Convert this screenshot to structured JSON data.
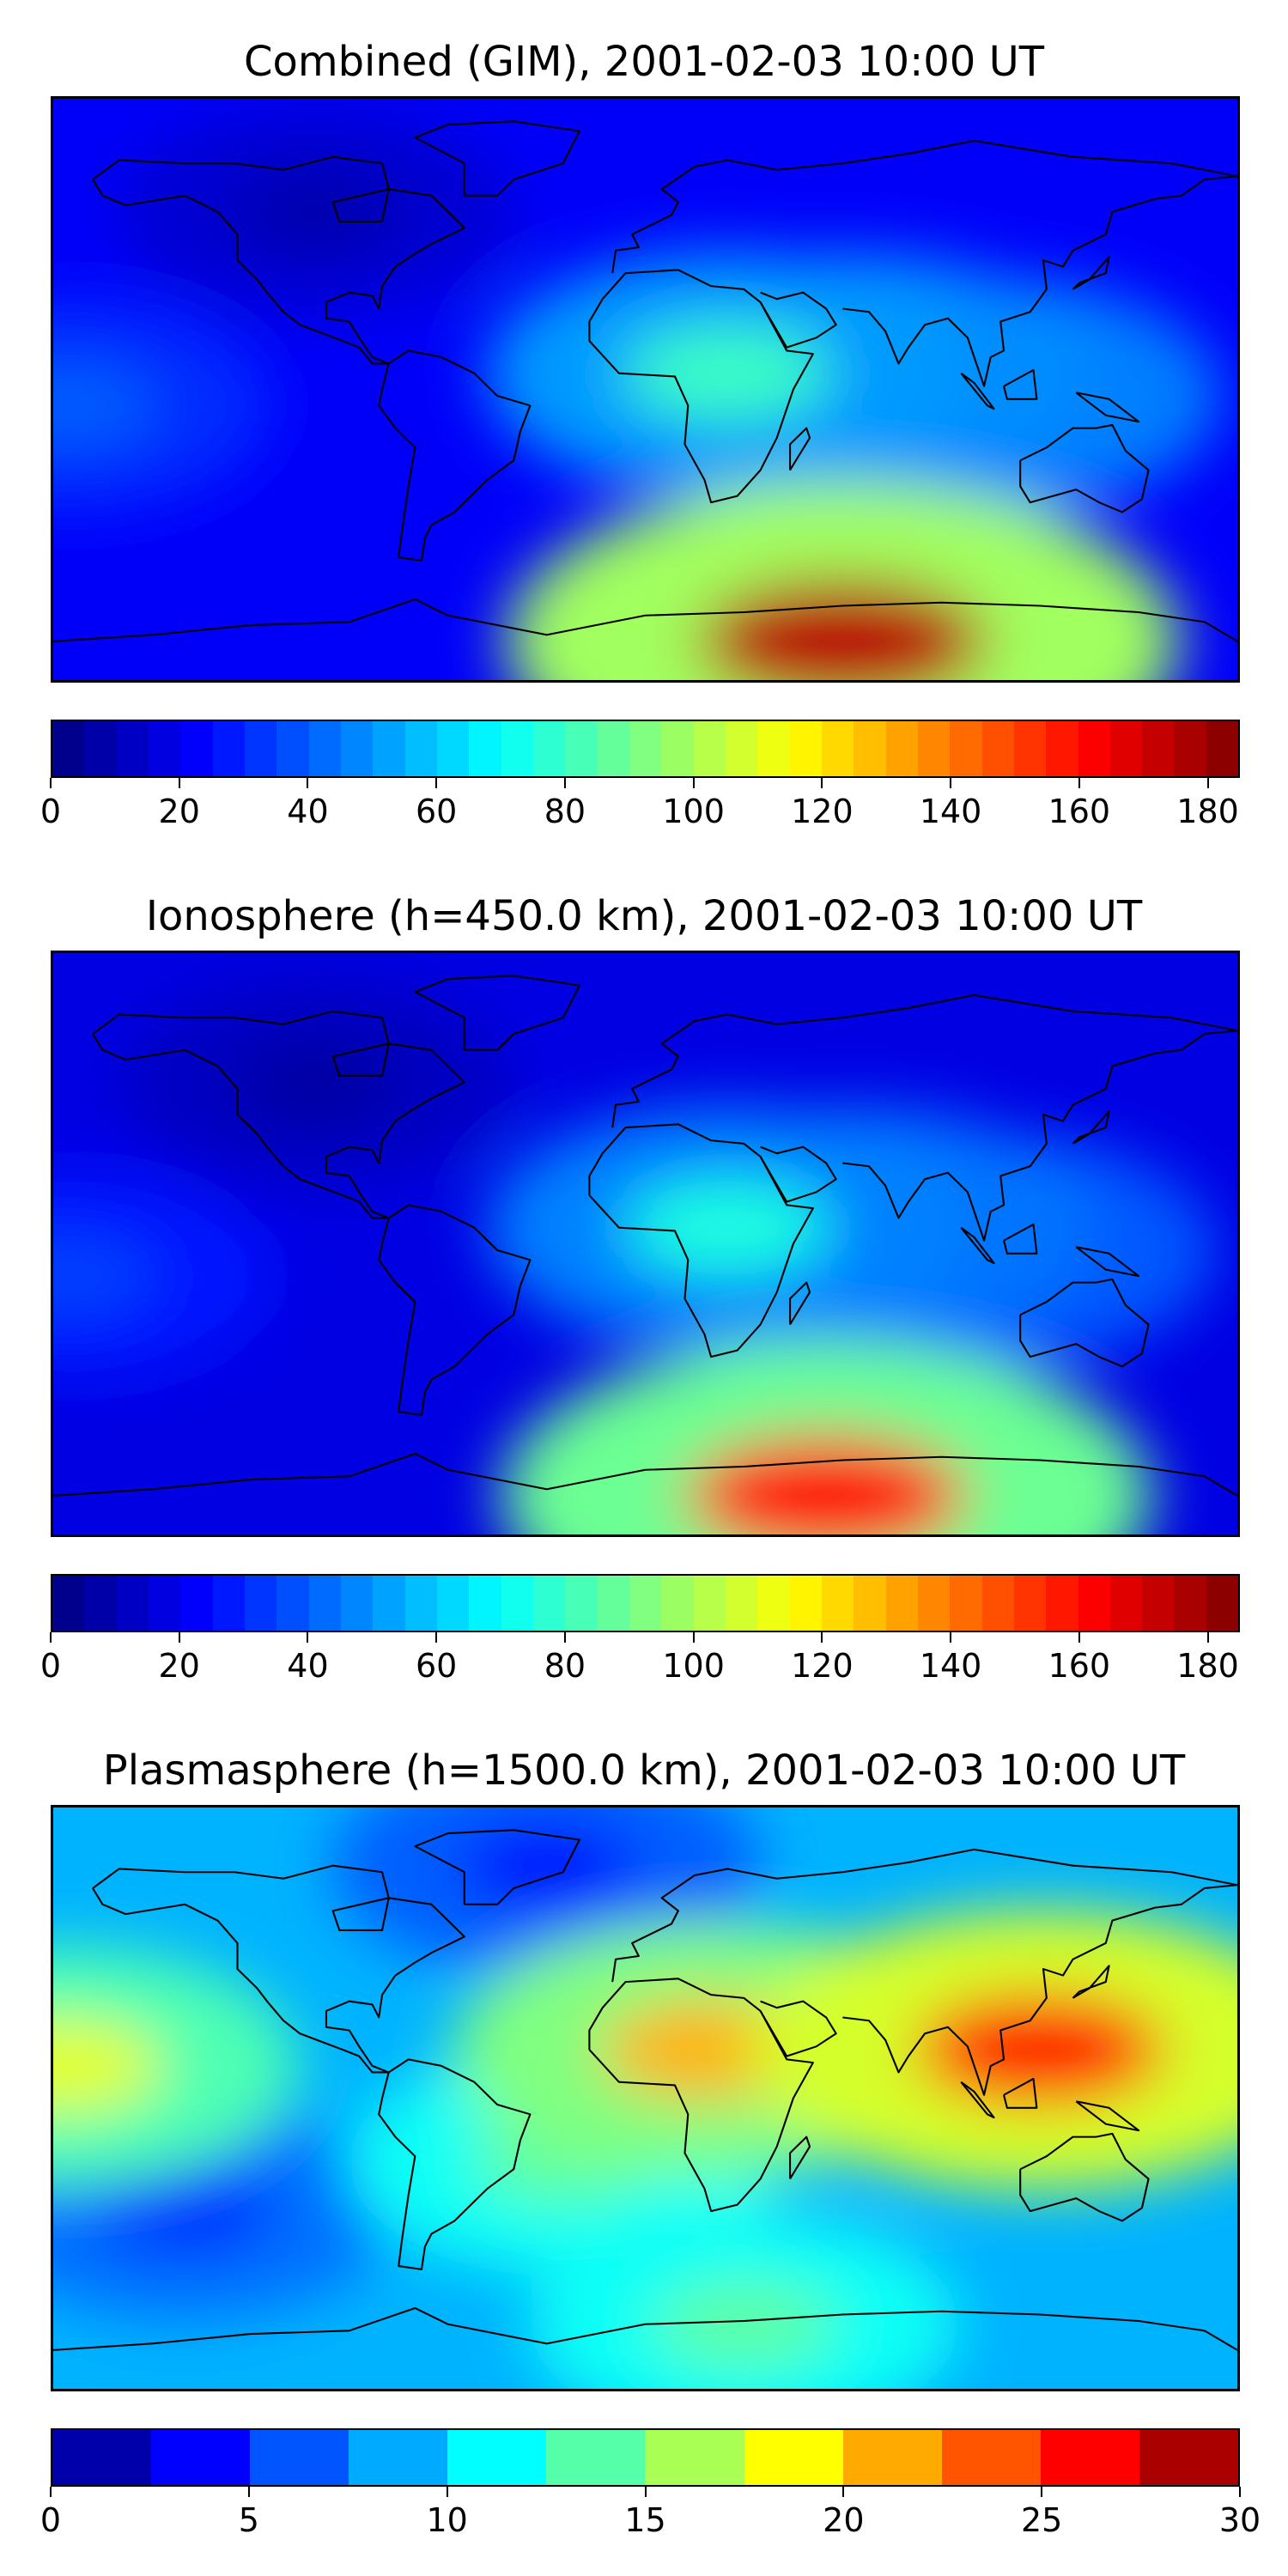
{
  "panels": [
    {
      "title": "Combined (GIM), 2001-02-03 10:00 UT",
      "colorbar": {
        "min": 0,
        "max": 185,
        "levels": 37,
        "ticks": [
          0,
          20,
          40,
          60,
          80,
          100,
          120,
          140,
          160,
          180
        ]
      }
    },
    {
      "title": "Ionosphere  (h=450.0 km), 2001-02-03 10:00 UT",
      "colorbar": {
        "min": 0,
        "max": 185,
        "levels": 37,
        "ticks": [
          0,
          20,
          40,
          60,
          80,
          100,
          120,
          140,
          160,
          180
        ]
      }
    },
    {
      "title": "Plasmasphere (h=1500.0 km), 2001-02-03 10:00 UT",
      "colorbar": {
        "min": 0,
        "max": 30,
        "levels": 12,
        "ticks": [
          0,
          5,
          10,
          15,
          20,
          25,
          30
        ]
      }
    }
  ],
  "chart_data": [
    {
      "type": "heatmap",
      "title": "Combined (GIM), 2001-02-03 10:00 UT",
      "colormap": "jet",
      "value_range": [
        0,
        185
      ],
      "background_value": 22,
      "features": [
        {
          "region": "southern high latitudes south of Africa / Indian Ocean",
          "lon": 60,
          "lat": -78,
          "value": 175
        },
        {
          "region": "equatorial Africa",
          "lon": 25,
          "lat": 5,
          "value": 80
        },
        {
          "region": "Indian Ocean / Arabian Sea",
          "lon": 65,
          "lat": 5,
          "value": 75
        },
        {
          "region": "Maritime Continent",
          "lon": 105,
          "lat": -2,
          "value": 70
        },
        {
          "region": "eastern Pacific (west edge)",
          "lon": -175,
          "lat": -5,
          "value": 40
        },
        {
          "region": "North America",
          "lon": -100,
          "lat": 55,
          "value": 8
        }
      ]
    },
    {
      "type": "heatmap",
      "title": "Ionosphere  (h=450.0 km), 2001-02-03 10:00 UT",
      "colormap": "jet",
      "value_range": [
        0,
        185
      ],
      "background_value": 18,
      "features": [
        {
          "region": "southern high latitudes south of Africa / Indian Ocean",
          "lon": 55,
          "lat": -78,
          "value": 160
        },
        {
          "region": "equatorial Africa",
          "lon": 25,
          "lat": 5,
          "value": 75
        },
        {
          "region": "Indian Ocean",
          "lon": 65,
          "lat": 5,
          "value": 70
        },
        {
          "region": "Maritime Continent",
          "lon": 105,
          "lat": -2,
          "value": 60
        },
        {
          "region": "eastern Pacific (west edge)",
          "lon": -175,
          "lat": -10,
          "value": 35
        },
        {
          "region": "North America",
          "lon": -100,
          "lat": 50,
          "value": 6
        }
      ]
    },
    {
      "type": "heatmap",
      "title": "Plasmasphere (h=1500.0 km), 2001-02-03 10:00 UT",
      "colormap": "jet",
      "value_range": [
        0,
        30
      ],
      "background_value": 9,
      "features": [
        {
          "region": "Southeast Asia / Maritime Continent",
          "lon": 120,
          "lat": 15,
          "value": 26
        },
        {
          "region": "Sahara / northeast Africa",
          "lon": 20,
          "lat": 15,
          "value": 21
        },
        {
          "region": "eastern Pacific (west edge)",
          "lon": -178,
          "lat": 10,
          "value": 18
        },
        {
          "region": "South Atlantic",
          "lon": -25,
          "lat": -20,
          "value": 14
        },
        {
          "region": "Southern Ocean belt",
          "lon": 30,
          "lat": -70,
          "value": 14
        },
        {
          "region": "northern high latitudes",
          "lon": -30,
          "lat": 72,
          "value": 4
        },
        {
          "region": "southern mid-latitude Pacific",
          "lon": -140,
          "lat": -35,
          "value": 5
        }
      ]
    }
  ]
}
